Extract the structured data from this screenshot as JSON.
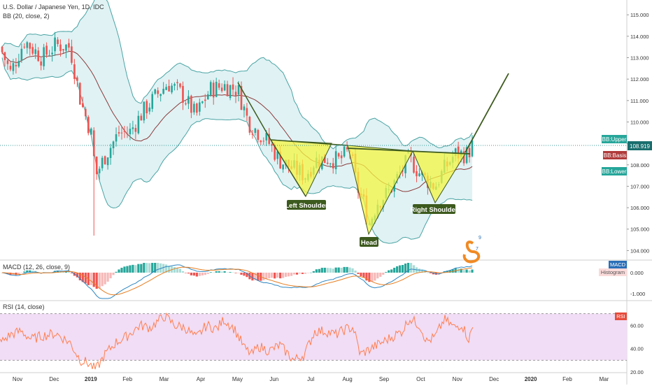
{
  "header": {
    "title": "U.S. Dollar / Japanese Yen, 1D, IDC",
    "bb_indicator": "BB (20, close, 2)",
    "macd_indicator": "MACD (12, 26, close, 9)",
    "rsi_indicator": "RSI (14, close)"
  },
  "colors": {
    "up": "#26a69a",
    "down": "#ef5350",
    "bb_band": "#4aa3a3",
    "bb_fill": "#d8eff1",
    "bb_basis": "#8b3a3a",
    "pattern_fill": "#f5f542",
    "pattern_line": "#3d5a1e",
    "macd_line": "#2e86c1",
    "signal_line": "#e67e22",
    "rsi_line": "#ff7f50",
    "rsi_bg": "#f1ddf5"
  },
  "chart_data": [
    {
      "type": "candlestick",
      "title": "U.S. Dollar / Japanese Yen, 1D, IDC",
      "x_tick_labels": [
        "Nov",
        "Dec",
        "2019",
        "Feb",
        "Mar",
        "Apr",
        "May",
        "Jun",
        "Jul",
        "Aug",
        "Sep",
        "Oct",
        "Nov",
        "Dec",
        "2020",
        "Feb",
        "Mar"
      ],
      "ylim": [
        103.85,
        115.3
      ],
      "y_tick_labels": [
        "104.000",
        "105.000",
        "106.000",
        "107.000",
        "108.000",
        "109.000",
        "110.000",
        "111.000",
        "112.000",
        "113.000",
        "114.000",
        "115.000"
      ],
      "approx_close_path": [
        [
          0,
          113.5
        ],
        [
          15,
          112.3
        ],
        [
          35,
          113.8
        ],
        [
          60,
          113.0
        ],
        [
          80,
          113.6
        ],
        [
          100,
          113.5
        ],
        [
          115,
          111.0
        ],
        [
          130,
          109.5
        ],
        [
          137,
          107.5
        ],
        [
          150,
          108.4
        ],
        [
          170,
          109.5
        ],
        [
          185,
          109.5
        ],
        [
          205,
          110.5
        ],
        [
          225,
          111.3
        ],
        [
          240,
          111.8
        ],
        [
          260,
          111.3
        ],
        [
          280,
          110.3
        ],
        [
          300,
          111.5
        ],
        [
          320,
          111.7
        ],
        [
          340,
          111.5
        ],
        [
          355,
          110.0
        ],
        [
          370,
          109.5
        ],
        [
          385,
          109.0
        ],
        [
          400,
          108.2
        ],
        [
          420,
          107.8
        ],
        [
          437,
          107.5
        ],
        [
          450,
          108.2
        ],
        [
          470,
          108.3
        ],
        [
          485,
          108.2
        ],
        [
          500,
          108.7
        ],
        [
          510,
          107.0
        ],
        [
          520,
          106.2
        ],
        [
          527,
          105.2
        ],
        [
          540,
          106.3
        ],
        [
          555,
          106.7
        ],
        [
          570,
          107.5
        ],
        [
          585,
          108.3
        ],
        [
          600,
          107.6
        ],
        [
          610,
          107.3
        ],
        [
          622,
          107.0
        ],
        [
          635,
          107.8
        ],
        [
          650,
          108.5
        ],
        [
          668,
          108.5
        ],
        [
          675,
          108.9
        ]
      ],
      "current_price": "108.919",
      "bollinger_labels": [
        "BB:Upper",
        "BB:Basis",
        "BB:Lower"
      ],
      "pattern": "inverse head and shoulders",
      "annotations": [
        "Left Shoulder",
        "Head",
        "Right Shoulder"
      ],
      "projection": {
        "from": 108.9,
        "to": 112.1
      }
    },
    {
      "type": "histogram_line",
      "title": "MACD (12, 26, close, 9)",
      "y_tick_labels": [
        "0.000",
        "-1.000"
      ],
      "badges": [
        "MACD",
        "Histogram"
      ]
    },
    {
      "type": "line",
      "title": "RSI (14, close)",
      "ylim": [
        20,
        80
      ],
      "y_tick_labels": [
        "60.00",
        "40.00",
        "20.00"
      ],
      "band": [
        30,
        70
      ],
      "badge": "RSI",
      "approx_values": [
        [
          0,
          45
        ],
        [
          15,
          52
        ],
        [
          30,
          55
        ],
        [
          45,
          48
        ],
        [
          60,
          51
        ],
        [
          80,
          53
        ],
        [
          100,
          45
        ],
        [
          115,
          30
        ],
        [
          125,
          28
        ],
        [
          137,
          22
        ],
        [
          150,
          35
        ],
        [
          165,
          45
        ],
        [
          180,
          50
        ],
        [
          200,
          60
        ],
        [
          215,
          58
        ],
        [
          235,
          68
        ],
        [
          250,
          60
        ],
        [
          265,
          58
        ],
        [
          280,
          49
        ],
        [
          295,
          60
        ],
        [
          310,
          57
        ],
        [
          320,
          65
        ],
        [
          335,
          57
        ],
        [
          350,
          40
        ],
        [
          360,
          35
        ],
        [
          370,
          42
        ],
        [
          385,
          38
        ],
        [
          400,
          43
        ],
        [
          420,
          30
        ],
        [
          435,
          35
        ],
        [
          450,
          55
        ],
        [
          465,
          55
        ],
        [
          480,
          52
        ],
        [
          495,
          57
        ],
        [
          505,
          58
        ],
        [
          515,
          35
        ],
        [
          530,
          40
        ],
        [
          545,
          45
        ],
        [
          560,
          50
        ],
        [
          575,
          55
        ],
        [
          585,
          66
        ],
        [
          600,
          60
        ],
        [
          610,
          46
        ],
        [
          622,
          50
        ],
        [
          635,
          65
        ],
        [
          650,
          58
        ],
        [
          660,
          61
        ],
        [
          670,
          48
        ],
        [
          677,
          60
        ]
      ]
    }
  ],
  "logo_letters": [
    "9",
    "7"
  ]
}
